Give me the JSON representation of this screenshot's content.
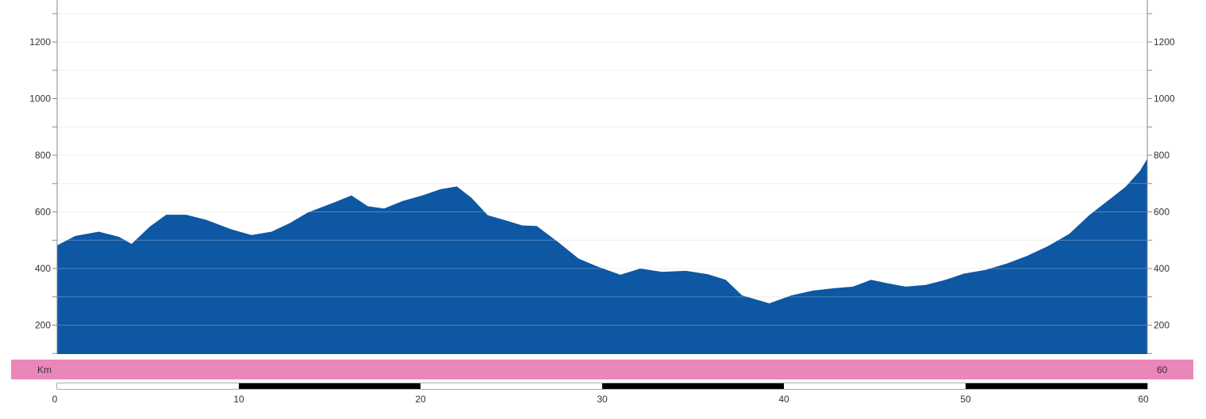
{
  "chart_data": {
    "type": "area",
    "title": "",
    "xlabel": "Km",
    "ylabel": "",
    "xlim": [
      0,
      60
    ],
    "ylim": [
      100,
      1350
    ],
    "grid": true,
    "y_ticks": [
      200,
      400,
      600,
      800,
      1000,
      1200
    ],
    "x_ticks": [
      0,
      10,
      20,
      30,
      40,
      50,
      60
    ],
    "x_end_label": "60",
    "series": [
      {
        "x": [
          0,
          1,
          2.3,
          3.4,
          4.1,
          5.1,
          6,
          7.1,
          8.2,
          9.6,
          10.7,
          11.8,
          12.8,
          13.8,
          15.2,
          16.2,
          17.1,
          18,
          19,
          20.1,
          21.1,
          22,
          22.8,
          23.7,
          24.8,
          25.6,
          26.4,
          27.6,
          28.7,
          29.7,
          31,
          32.1,
          33.3,
          34.6,
          35.8,
          36.8,
          37.7,
          39.2,
          40.4,
          41.6,
          42.7,
          43.8,
          44.8,
          45.7,
          46.7,
          47.8,
          48.9,
          49.9,
          51.1,
          52.3,
          53.4,
          54.5,
          55.7,
          56.8,
          57.8,
          58.8,
          59.6,
          60
        ],
        "values": [
          482,
          515,
          530,
          512,
          487,
          548,
          590,
          590,
          572,
          538,
          518,
          530,
          560,
          598,
          632,
          658,
          620,
          612,
          638,
          658,
          680,
          690,
          650,
          588,
          568,
          552,
          550,
          492,
          435,
          408,
          378,
          400,
          388,
          392,
          380,
          360,
          305,
          277,
          305,
          322,
          330,
          336,
          360,
          348,
          336,
          342,
          360,
          382,
          395,
          418,
          445,
          478,
          522,
          588,
          638,
          688,
          745,
          788
        ]
      }
    ],
    "colors": {
      "area": "#0d57a3",
      "band": "#ea86b8",
      "grid": "#ebebeb",
      "axis": "#8a8a8a",
      "scale_dark": "#000000",
      "scale_light": "#ffffff"
    }
  }
}
